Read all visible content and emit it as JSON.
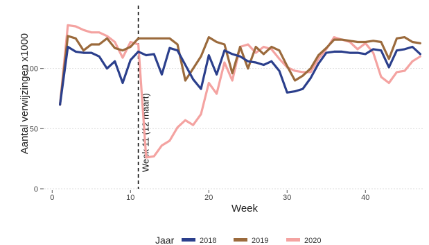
{
  "chart_data": {
    "type": "line",
    "title": "",
    "xlabel": "Week",
    "ylabel": "Aantal verwijzingen x1000",
    "xlim": [
      -1,
      47.5
    ],
    "ylim": [
      0,
      150
    ],
    "xticks": [
      0,
      10,
      20,
      30,
      40
    ],
    "yticks": [
      0,
      50,
      100
    ],
    "grid": true,
    "legend": {
      "title": "Jaar",
      "placement": "bottom"
    },
    "annotation": {
      "text": "Week 11 (12 maart)",
      "x": 11
    },
    "series": [
      {
        "name": "2018",
        "color": "#2b3f8c",
        "x": [
          1,
          2,
          3,
          4,
          5,
          6,
          7,
          8,
          9,
          10,
          11,
          12,
          13,
          14,
          15,
          16,
          17,
          18,
          19,
          20,
          21,
          22,
          23,
          24,
          25,
          26,
          27,
          28,
          29,
          30,
          31,
          32,
          33,
          34,
          35,
          36,
          37,
          38,
          39,
          40,
          41,
          42,
          43,
          44,
          45,
          46,
          47
        ],
        "y": [
          70,
          118,
          114,
          113,
          113,
          110,
          100,
          106,
          88,
          107,
          114,
          111,
          112,
          95,
          117,
          115,
          103,
          91,
          83,
          111,
          95,
          115,
          112,
          110,
          106,
          105,
          103,
          106,
          98,
          80,
          81,
          83,
          92,
          104,
          113,
          114,
          114,
          113,
          113,
          112,
          116,
          115,
          101,
          115,
          116,
          118,
          112
        ]
      },
      {
        "name": "2019",
        "color": "#9b6a3c",
        "x": [
          1,
          2,
          3,
          4,
          5,
          6,
          7,
          8,
          9,
          10,
          11,
          12,
          13,
          14,
          15,
          16,
          17,
          18,
          19,
          20,
          21,
          22,
          23,
          24,
          25,
          26,
          27,
          28,
          29,
          30,
          31,
          32,
          33,
          34,
          35,
          36,
          37,
          38,
          39,
          40,
          41,
          42,
          43,
          44,
          45,
          46,
          47
        ],
        "y": [
          70,
          127,
          125,
          115,
          120,
          120,
          125,
          117,
          115,
          118,
          125,
          125,
          125,
          125,
          125,
          120,
          90,
          100,
          110,
          126,
          122,
          120,
          96,
          118,
          100,
          118,
          112,
          118,
          115,
          102,
          90,
          94,
          100,
          111,
          117,
          124,
          124,
          123,
          122,
          122,
          123,
          122,
          108,
          125,
          126,
          122,
          121
        ]
      },
      {
        "name": "2020",
        "color": "#f4a3a1",
        "x": [
          1,
          2,
          3,
          4,
          5,
          6,
          7,
          8,
          9,
          10,
          11,
          12,
          13,
          14,
          15,
          16,
          17,
          18,
          19,
          20,
          21,
          22,
          23,
          24,
          25,
          26,
          27,
          28,
          29,
          30,
          31,
          32,
          33,
          34,
          35,
          36,
          37,
          38,
          39,
          40,
          41,
          42,
          43,
          44,
          45,
          46,
          47
        ],
        "y": [
          70,
          136,
          135,
          132,
          130,
          130,
          127,
          122,
          109,
          122,
          120,
          26,
          27,
          36,
          40,
          51,
          57,
          53,
          62,
          88,
          79,
          105,
          90,
          118,
          120,
          113,
          118,
          116,
          108,
          101,
          98,
          97,
          97,
          108,
          116,
          126,
          124,
          122,
          116,
          121,
          113,
          93,
          88,
          97,
          98,
          106,
          110
        ]
      }
    ]
  }
}
